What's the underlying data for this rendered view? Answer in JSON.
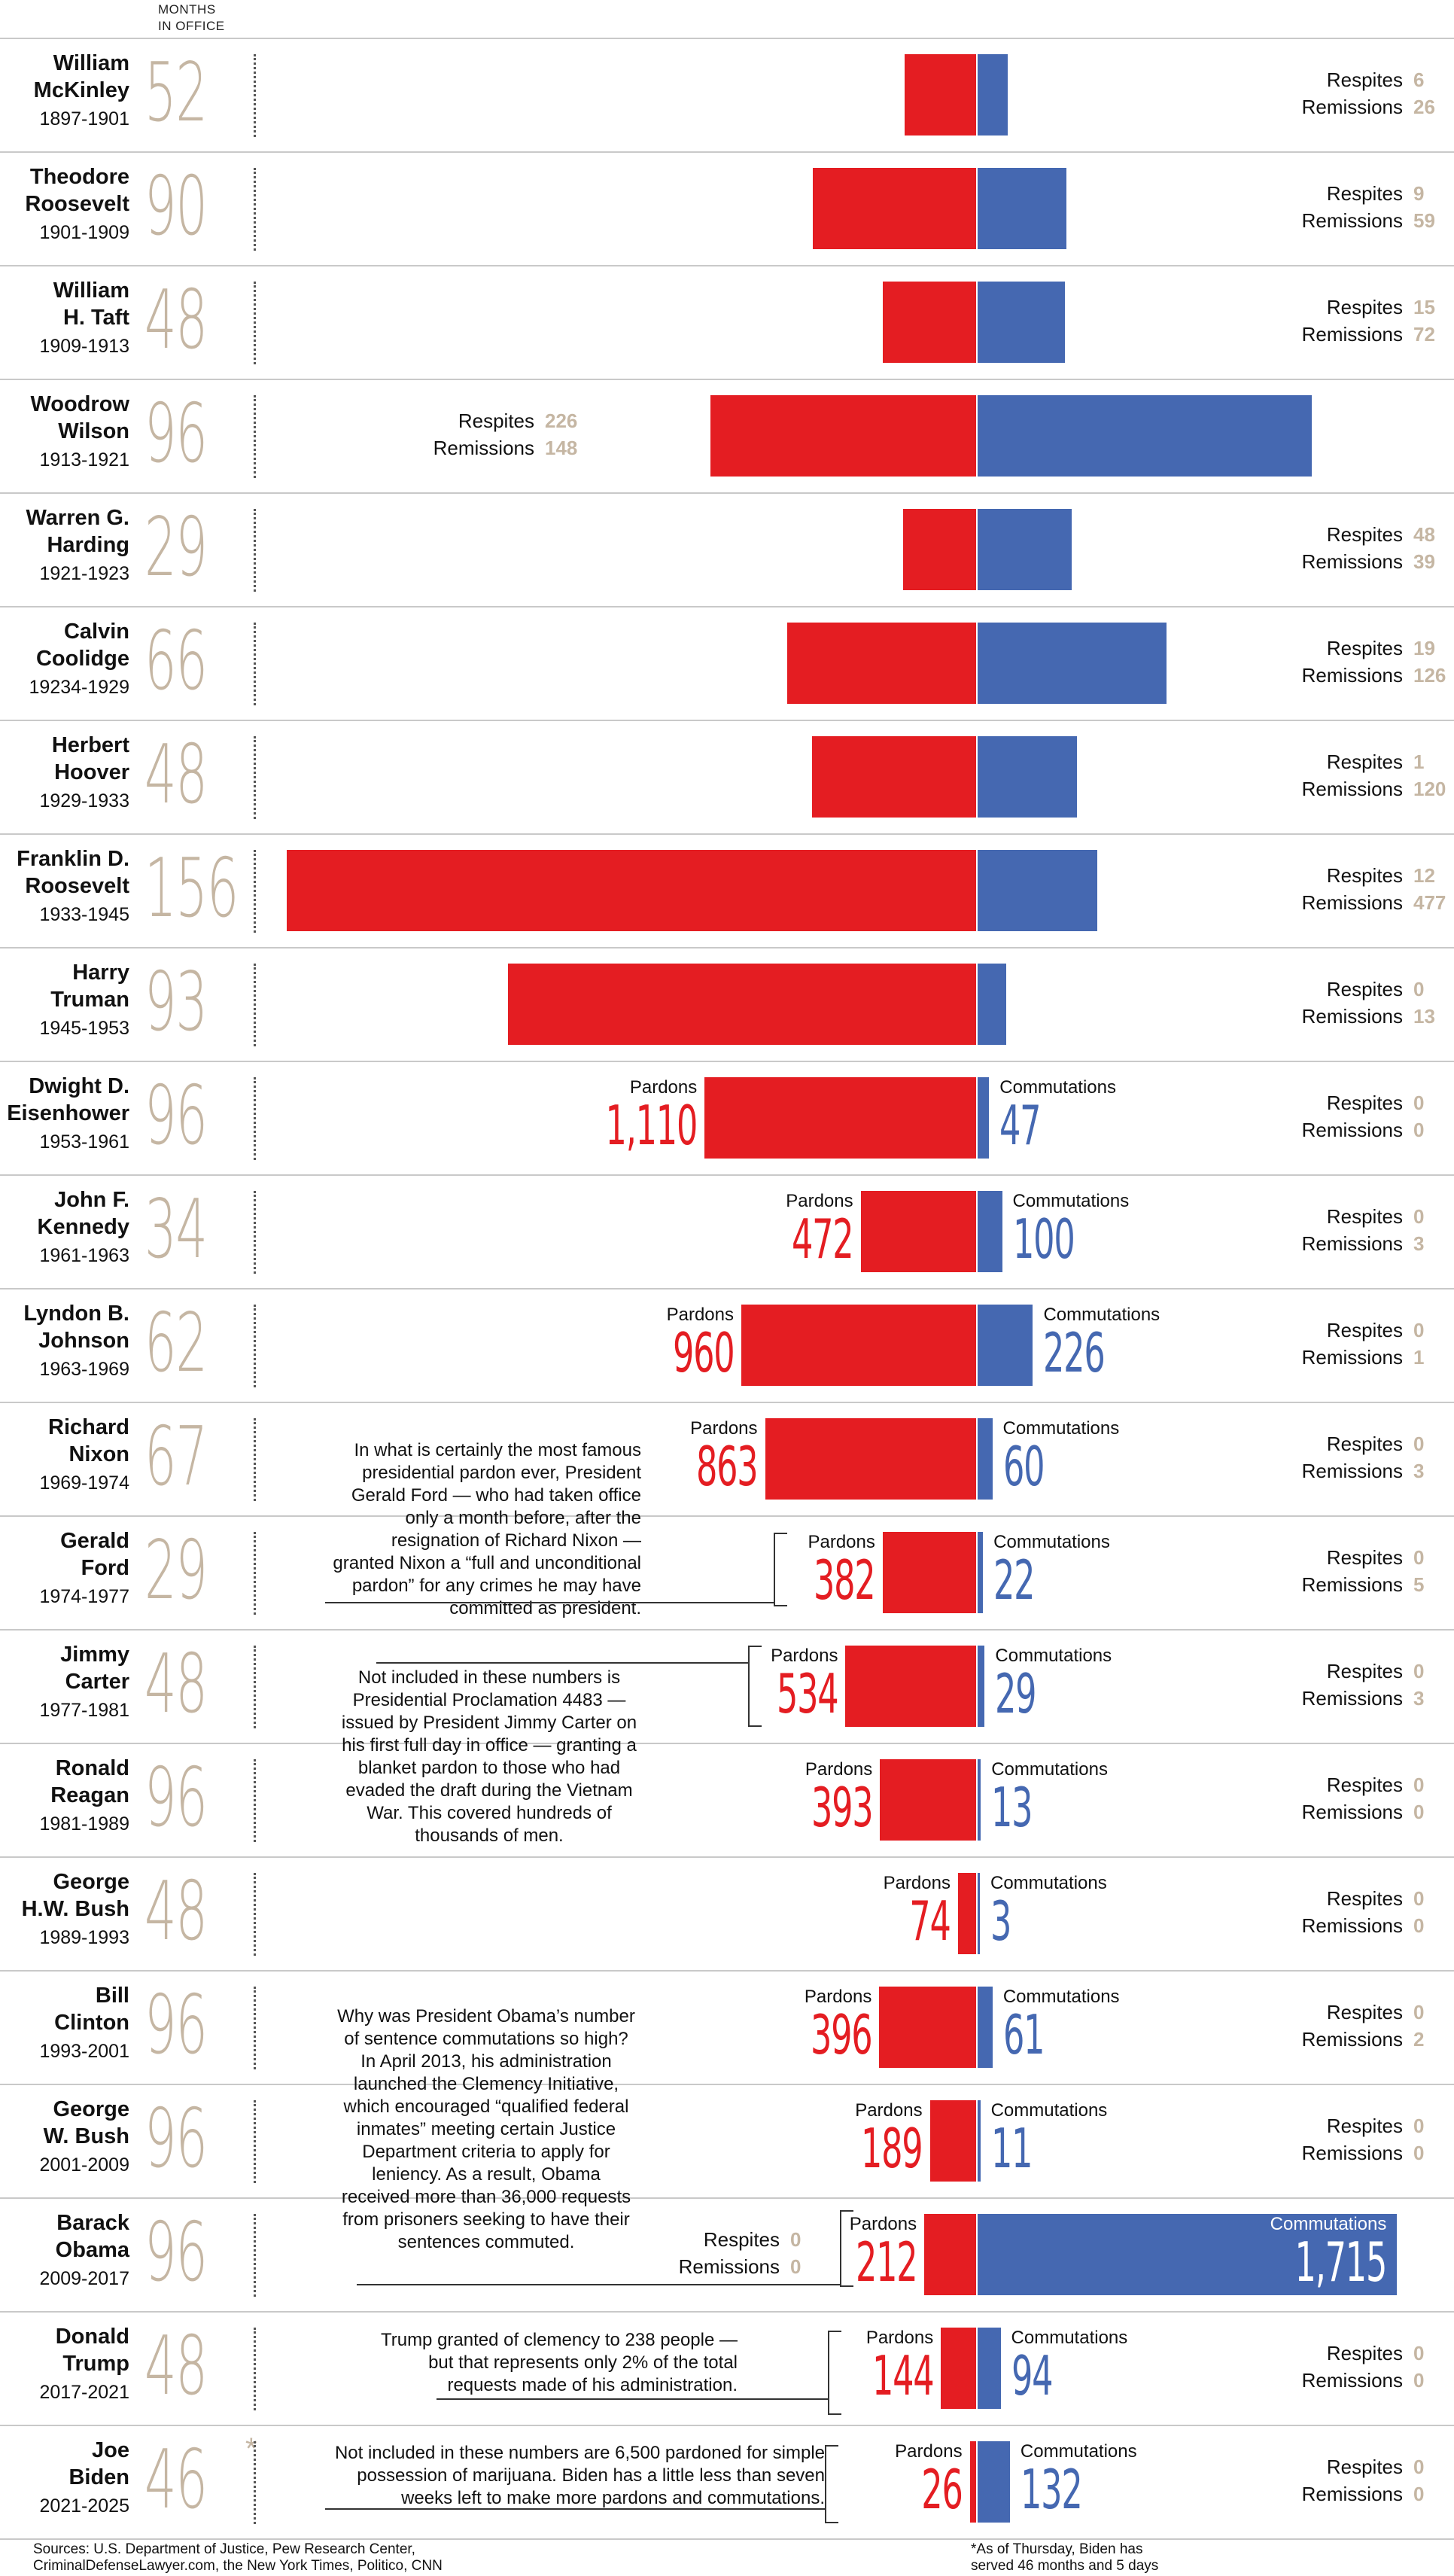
{
  "header": {
    "months_label": "MONTHS\nIN OFFICE"
  },
  "labels": {
    "pardons": "Pardons",
    "commutations": "Commutations",
    "respites": "Respites",
    "remissions": "Remissions"
  },
  "colors": {
    "pardons": "#e41d22",
    "commutations": "#4568b1",
    "months": "#c5b6a3"
  },
  "chart_data": {
    "type": "bar",
    "layout": "diverging horizontal bars (pardons left, commutations right)",
    "x_units": "count",
    "rows": [
      {
        "name": "William\nMcKinley",
        "years": "1897-1901",
        "months": "52",
        "pardons": 291,
        "commutations": 123,
        "pardons_label": "",
        "commutations_label": "",
        "respites": "6",
        "remissions": "26"
      },
      {
        "name": "Theodore\nRoosevelt",
        "years": "1901-1909",
        "months": "90",
        "pardons": 668,
        "commutations": 363,
        "pardons_label": "",
        "commutations_label": "",
        "respites": "9",
        "remissions": "59"
      },
      {
        "name": "William\nH. Taft",
        "years": "1909-1913",
        "months": "48",
        "pardons": 383,
        "commutations": 358,
        "pardons_label": "",
        "commutations_label": "",
        "respites": "15",
        "remissions": "72"
      },
      {
        "name": "Woodrow\nWilson",
        "years": "1913-1921",
        "months": "96",
        "pardons": 1087,
        "commutations": 1366,
        "pardons_label": "",
        "commutations_label": "",
        "respites": "226",
        "remissions": "148",
        "rr_left": true
      },
      {
        "name": "Warren G.\nHarding",
        "years": "1921-1923",
        "months": "29",
        "pardons": 300,
        "commutations": 386,
        "pardons_label": "",
        "commutations_label": "",
        "respites": "48",
        "remissions": "39"
      },
      {
        "name": "Calvin\nCoolidge",
        "years": "19234-1929",
        "months": "66",
        "pardons": 773,
        "commutations": 773,
        "pardons_label": "",
        "commutations_label": "",
        "respites": "19",
        "remissions": "126"
      },
      {
        "name": "Herbert\nHoover",
        "years": "1929-1933",
        "months": "48",
        "pardons": 672,
        "commutations": 405,
        "pardons_label": "",
        "commutations_label": "",
        "respites": "1",
        "remissions": "120"
      },
      {
        "name": "Franklin D.\nRoosevelt",
        "years": "1933-1945",
        "months": "156",
        "pardons": 2819,
        "commutations": 488,
        "pardons_label": "",
        "commutations_label": "",
        "respites": "12",
        "remissions": "477"
      },
      {
        "name": "Harry\nTruman",
        "years": "1945-1953",
        "months": "93",
        "pardons": 1913,
        "commutations": 118,
        "pardons_label": "",
        "commutations_label": "",
        "respites": "0",
        "remissions": "13"
      },
      {
        "name": "Dwight D.\nEisenhower",
        "years": "1953-1961",
        "months": "96",
        "pardons": 1110,
        "commutations": 47,
        "pardons_label": "1,110",
        "commutations_label": "47",
        "respites": "0",
        "remissions": "0"
      },
      {
        "name": "John F.\nKennedy",
        "years": "1961-1963",
        "months": "34",
        "pardons": 472,
        "commutations": 100,
        "pardons_label": "472",
        "commutations_label": "100",
        "respites": "0",
        "remissions": "3"
      },
      {
        "name": "Lyndon B.\nJohnson",
        "years": "1963-1969",
        "months": "62",
        "pardons": 960,
        "commutations": 226,
        "pardons_label": "960",
        "commutations_label": "226",
        "respites": "0",
        "remissions": "1"
      },
      {
        "name": "Richard\nNixon",
        "years": "1969-1974",
        "months": "67",
        "pardons": 863,
        "commutations": 60,
        "pardons_label": "863",
        "commutations_label": "60",
        "respites": "0",
        "remissions": "3"
      },
      {
        "name": "Gerald\nFord",
        "years": "1974-1977",
        "months": "29",
        "pardons": 382,
        "commutations": 22,
        "pardons_label": "382",
        "commutations_label": "22",
        "respites": "0",
        "remissions": "5"
      },
      {
        "name": "Jimmy\nCarter",
        "years": "1977-1981",
        "months": "48",
        "pardons": 534,
        "commutations": 29,
        "pardons_label": "534",
        "commutations_label": "29",
        "respites": "0",
        "remissions": "3"
      },
      {
        "name": "Ronald\nReagan",
        "years": "1981-1989",
        "months": "96",
        "pardons": 393,
        "commutations": 13,
        "pardons_label": "393",
        "commutations_label": "13",
        "respites": "0",
        "remissions": "0"
      },
      {
        "name": "George\nH.W. Bush",
        "years": "1989-1993",
        "months": "48",
        "pardons": 74,
        "commutations": 3,
        "pardons_label": "74",
        "commutations_label": "3",
        "respites": "0",
        "remissions": "0"
      },
      {
        "name": "Bill\nClinton",
        "years": "1993-2001",
        "months": "96",
        "pardons": 396,
        "commutations": 61,
        "pardons_label": "396",
        "commutations_label": "61",
        "respites": "0",
        "remissions": "2"
      },
      {
        "name": "George\nW. Bush",
        "years": "2001-2009",
        "months": "96",
        "pardons": 189,
        "commutations": 11,
        "pardons_label": "189",
        "commutations_label": "11",
        "respites": "0",
        "remissions": "0"
      },
      {
        "name": "Barack\nObama",
        "years": "2009-2017",
        "months": "96",
        "pardons": 212,
        "commutations": 1715,
        "pardons_label": "212",
        "commutations_label": "1,715",
        "respites": "0",
        "remissions": "0",
        "rr_left": true,
        "comm_inside": true
      },
      {
        "name": "Donald\nTrump",
        "years": "2017-2021",
        "months": "48",
        "pardons": 144,
        "commutations": 94,
        "pardons_label": "144",
        "commutations_label": "94",
        "respites": "0",
        "remissions": "0"
      },
      {
        "name": "Joe\nBiden",
        "years": "2021-2025",
        "months": "46",
        "months_mark": "*",
        "pardons": 26,
        "commutations": 132,
        "pardons_label": "26",
        "commutations_label": "132",
        "respites": "0",
        "remissions": "0"
      }
    ]
  },
  "notes": {
    "nixon": "In what is certainly the most famous presidential pardon ever, President Gerald Ford — who had taken office only a month before, after the resignation of Richard Nixon — granted Nixon a “full and unconditional pardon” for any crimes he may have committed as president.",
    "carter": "Not included in these numbers is Presidential Proclamation 4483 — issued by President Jimmy Carter on his first full day in office — granting a blanket pardon to those who had evaded the draft during the Vietnam War. This covered hundreds of thousands of men.",
    "obama": "Why was President Obama’s number of sentence commutations so high? In April 2013, his administration launched the Clemency Initiative, which encouraged “qualified federal inmates” meeting certain Justice Department criteria to apply for leniency. As a result, Obama received more than 36,000 requests from prisoners seeking to have their sentences commuted.",
    "trump": "Trump granted of clemency to 238 people — but that represents only 2% of the total requests made of his administration.",
    "biden": "Not included in these numbers are 6,500 pardoned for simple possession of marijuana. Biden has a little less than seven weeks left to make more pardons and commutations."
  },
  "footer": {
    "sources": "Sources: U.S. Department of Justice, Pew Research Center,\nCriminalDefenseLawyer.com, the New York Times, Politico, CNN",
    "asterisk_note": "*As of Thursday, Biden has\nserved 46 months and 5 days"
  }
}
